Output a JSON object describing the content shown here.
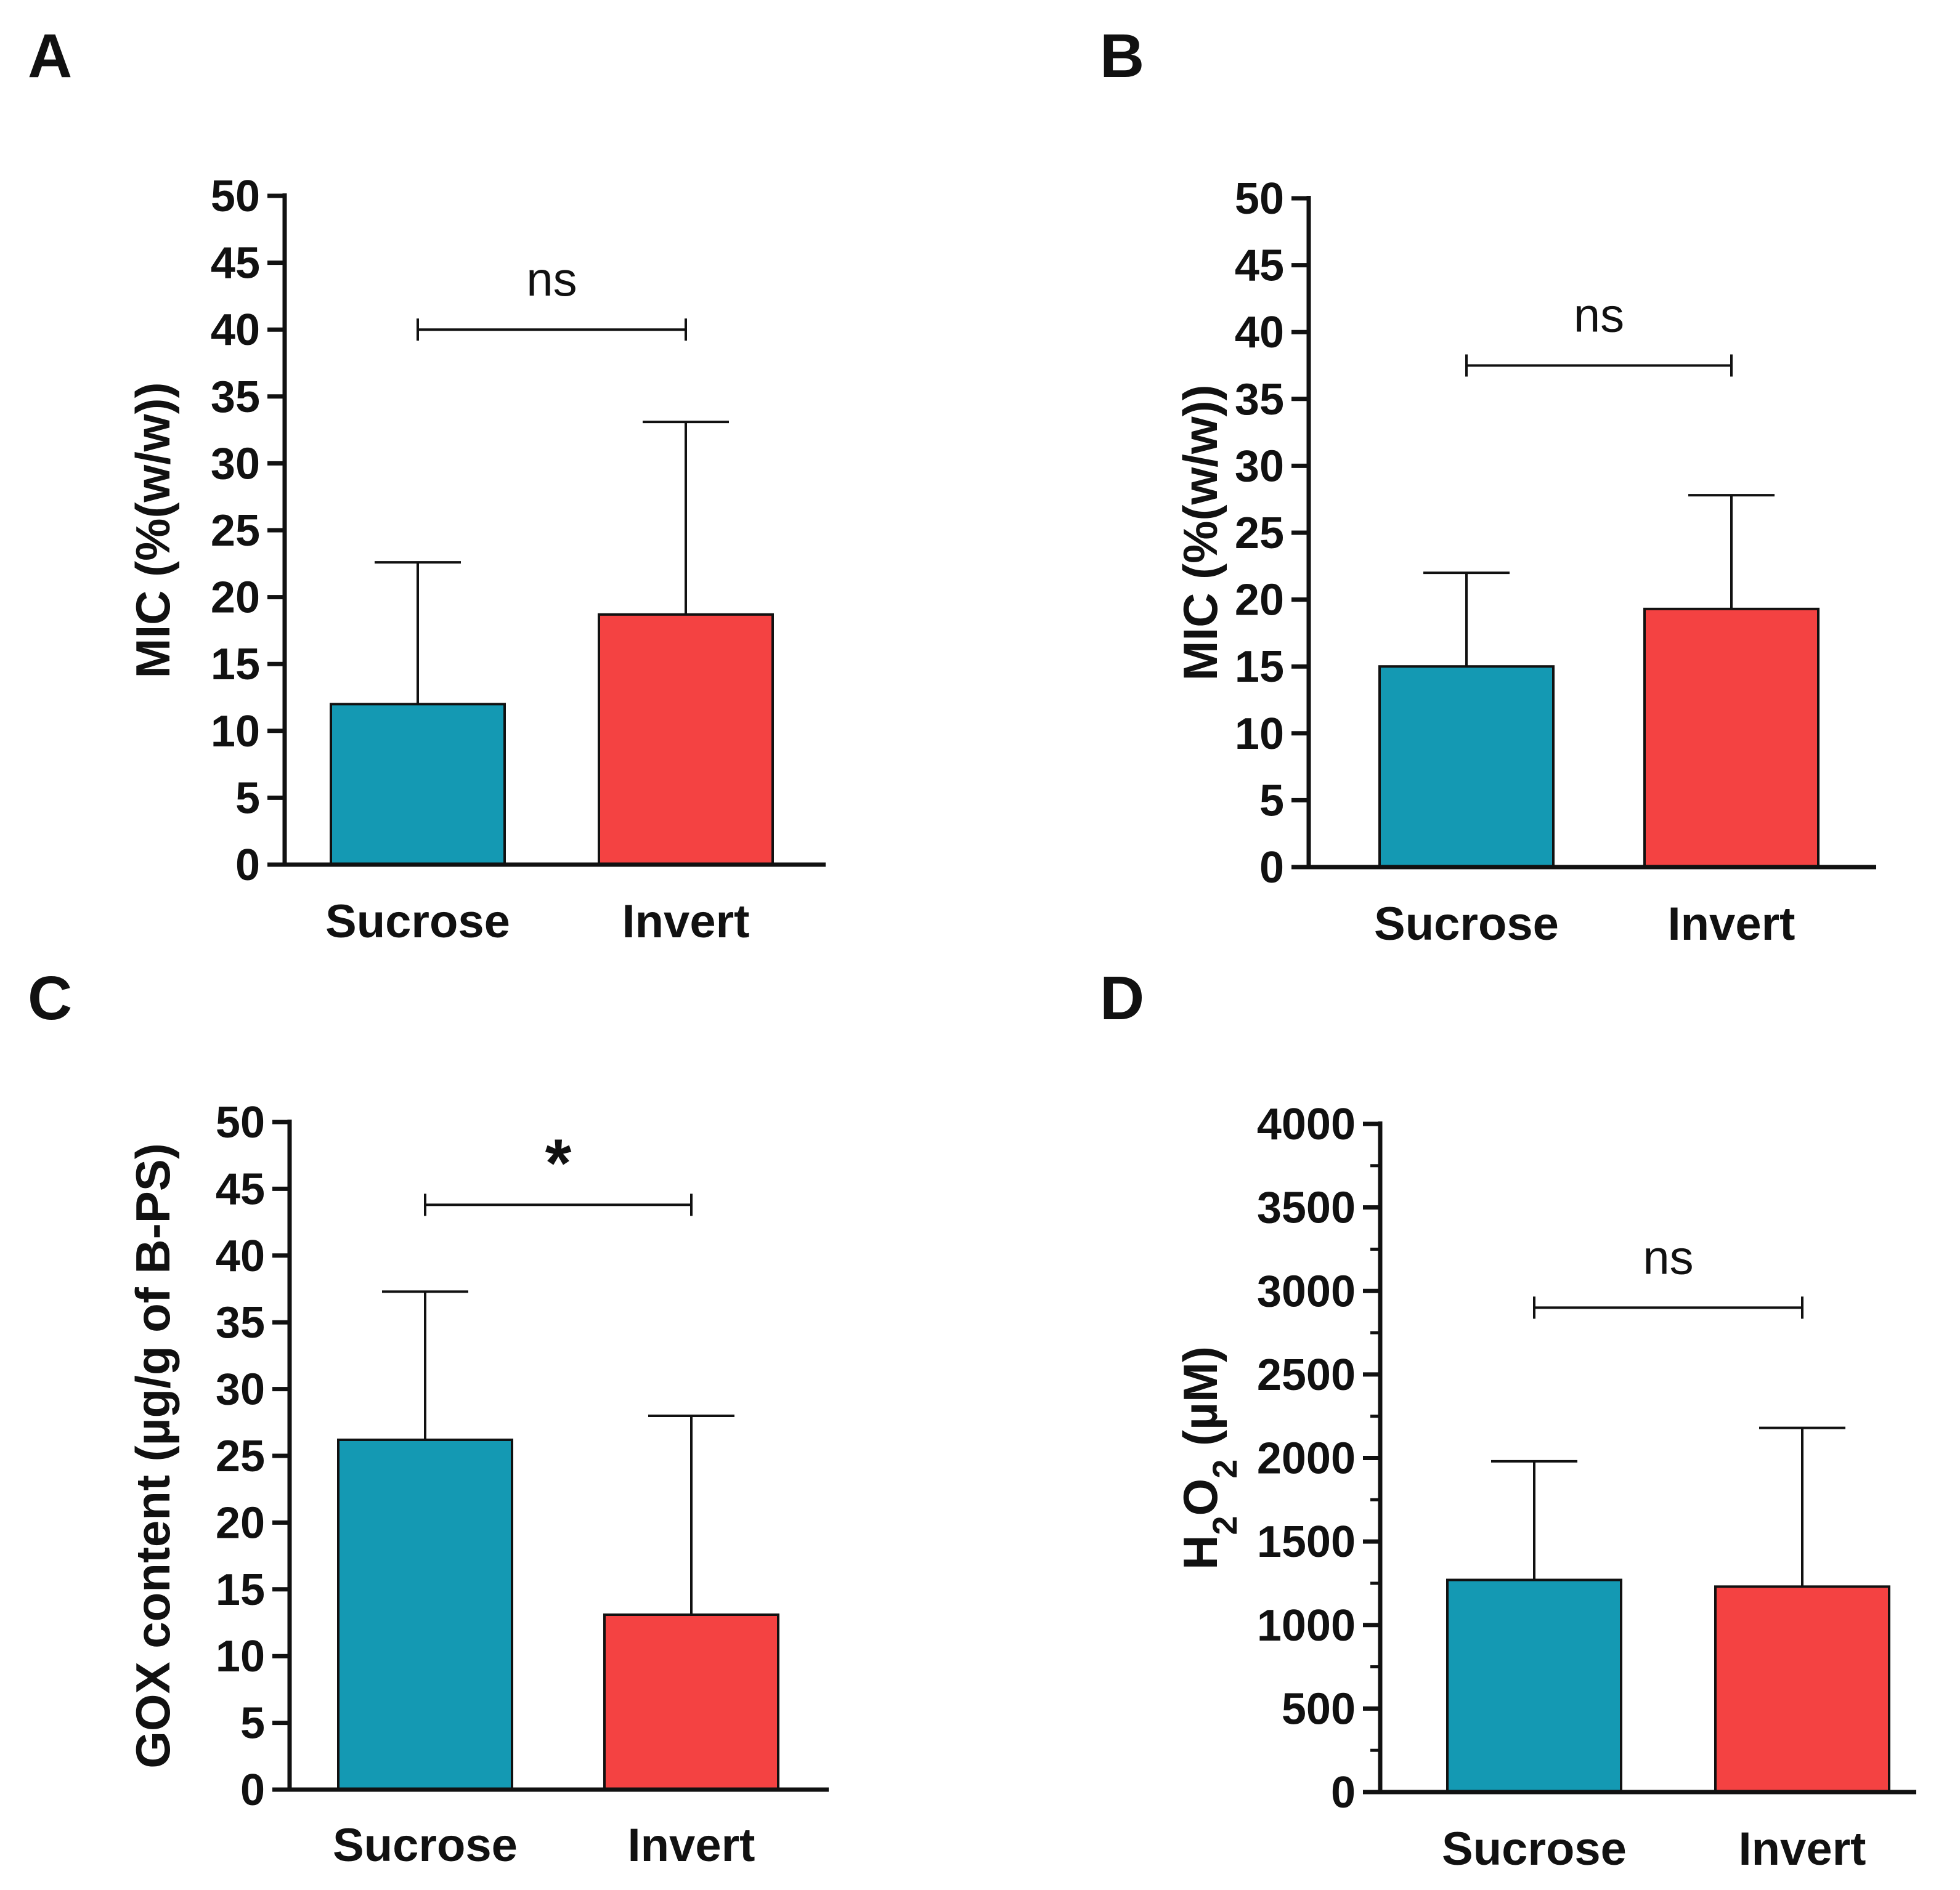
{
  "colors": {
    "sucrose": "#1499b3",
    "invert": "#f44242",
    "axis": "#111111"
  },
  "chart_data": [
    {
      "panel": "A",
      "type": "bar",
      "categories": [
        "Sucrose",
        "Invert"
      ],
      "values": [
        12,
        18.7
      ],
      "error_upper": [
        22.6,
        33.1
      ],
      "ylabel": "MIC (%(w/w))",
      "ylim": [
        0,
        50
      ],
      "yticks": [
        "0",
        "5",
        "10",
        "15",
        "20",
        "25",
        "30",
        "35",
        "40",
        "45",
        "50"
      ],
      "significance": {
        "label": "ns",
        "bracket_y": 40
      }
    },
    {
      "panel": "B",
      "type": "bar",
      "categories": [
        "Sucrose",
        "Invert"
      ],
      "values": [
        15,
        19.3
      ],
      "error_upper": [
        22,
        27.8
      ],
      "ylabel": "MIC (%(w/w))",
      "ylim": [
        0,
        50
      ],
      "yticks": [
        "0",
        "5",
        "10",
        "15",
        "20",
        "25",
        "30",
        "35",
        "40",
        "45",
        "50"
      ],
      "significance": {
        "label": "ns",
        "bracket_y": 37.5
      }
    },
    {
      "panel": "C",
      "type": "bar",
      "categories": [
        "Sucrose",
        "Invert"
      ],
      "values": [
        26.2,
        13.1
      ],
      "error_upper": [
        37.3,
        28
      ],
      "ylabel": "GOX content (µg/g of B-PS)",
      "ylim": [
        0,
        50
      ],
      "yticks": [
        "0",
        "5",
        "10",
        "15",
        "20",
        "25",
        "30",
        "35",
        "40",
        "45",
        "50"
      ],
      "significance": {
        "label": "*",
        "bracket_y": 43.8
      }
    },
    {
      "panel": "D",
      "type": "bar",
      "categories": [
        "Sucrose",
        "Invert"
      ],
      "values": [
        1270,
        1230
      ],
      "error_upper": [
        1980,
        2180
      ],
      "ylabel": "H2O2 (µM)",
      "ylabel_parts": {
        "h": "H",
        "sub1": "2",
        "o": "O",
        "sub2": "2",
        "unit": " (µM)"
      },
      "ylim": [
        0,
        4000
      ],
      "minor_tick_step": 250,
      "yticks": [
        "0",
        "500",
        "1000",
        "1500",
        "2000",
        "2500",
        "3000",
        "3500",
        "4000"
      ],
      "significance": {
        "label": "ns",
        "bracket_y": 2900
      }
    }
  ]
}
